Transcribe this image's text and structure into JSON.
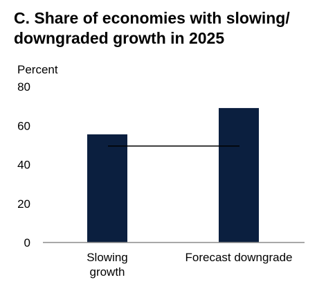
{
  "chart_data": {
    "type": "bar",
    "title": "C. Share of economies with slowing/\ndowngraded growth in 2025",
    "ylabel": "Percent",
    "xlabel": "",
    "ylim": [
      0,
      80
    ],
    "yticks": [
      0,
      20,
      40,
      60,
      80
    ],
    "categories": [
      "Slowing growth",
      "Forecast downgrade"
    ],
    "category_label_lines": [
      [
        "Slowing",
        "growth"
      ],
      [
        "Forecast downgrade"
      ]
    ],
    "values": [
      55.5,
      69
    ],
    "reference_line": 49.5,
    "bar_color": "#0b1f3f",
    "reference_line_color": "#000000",
    "grid": false,
    "legend": "none"
  }
}
